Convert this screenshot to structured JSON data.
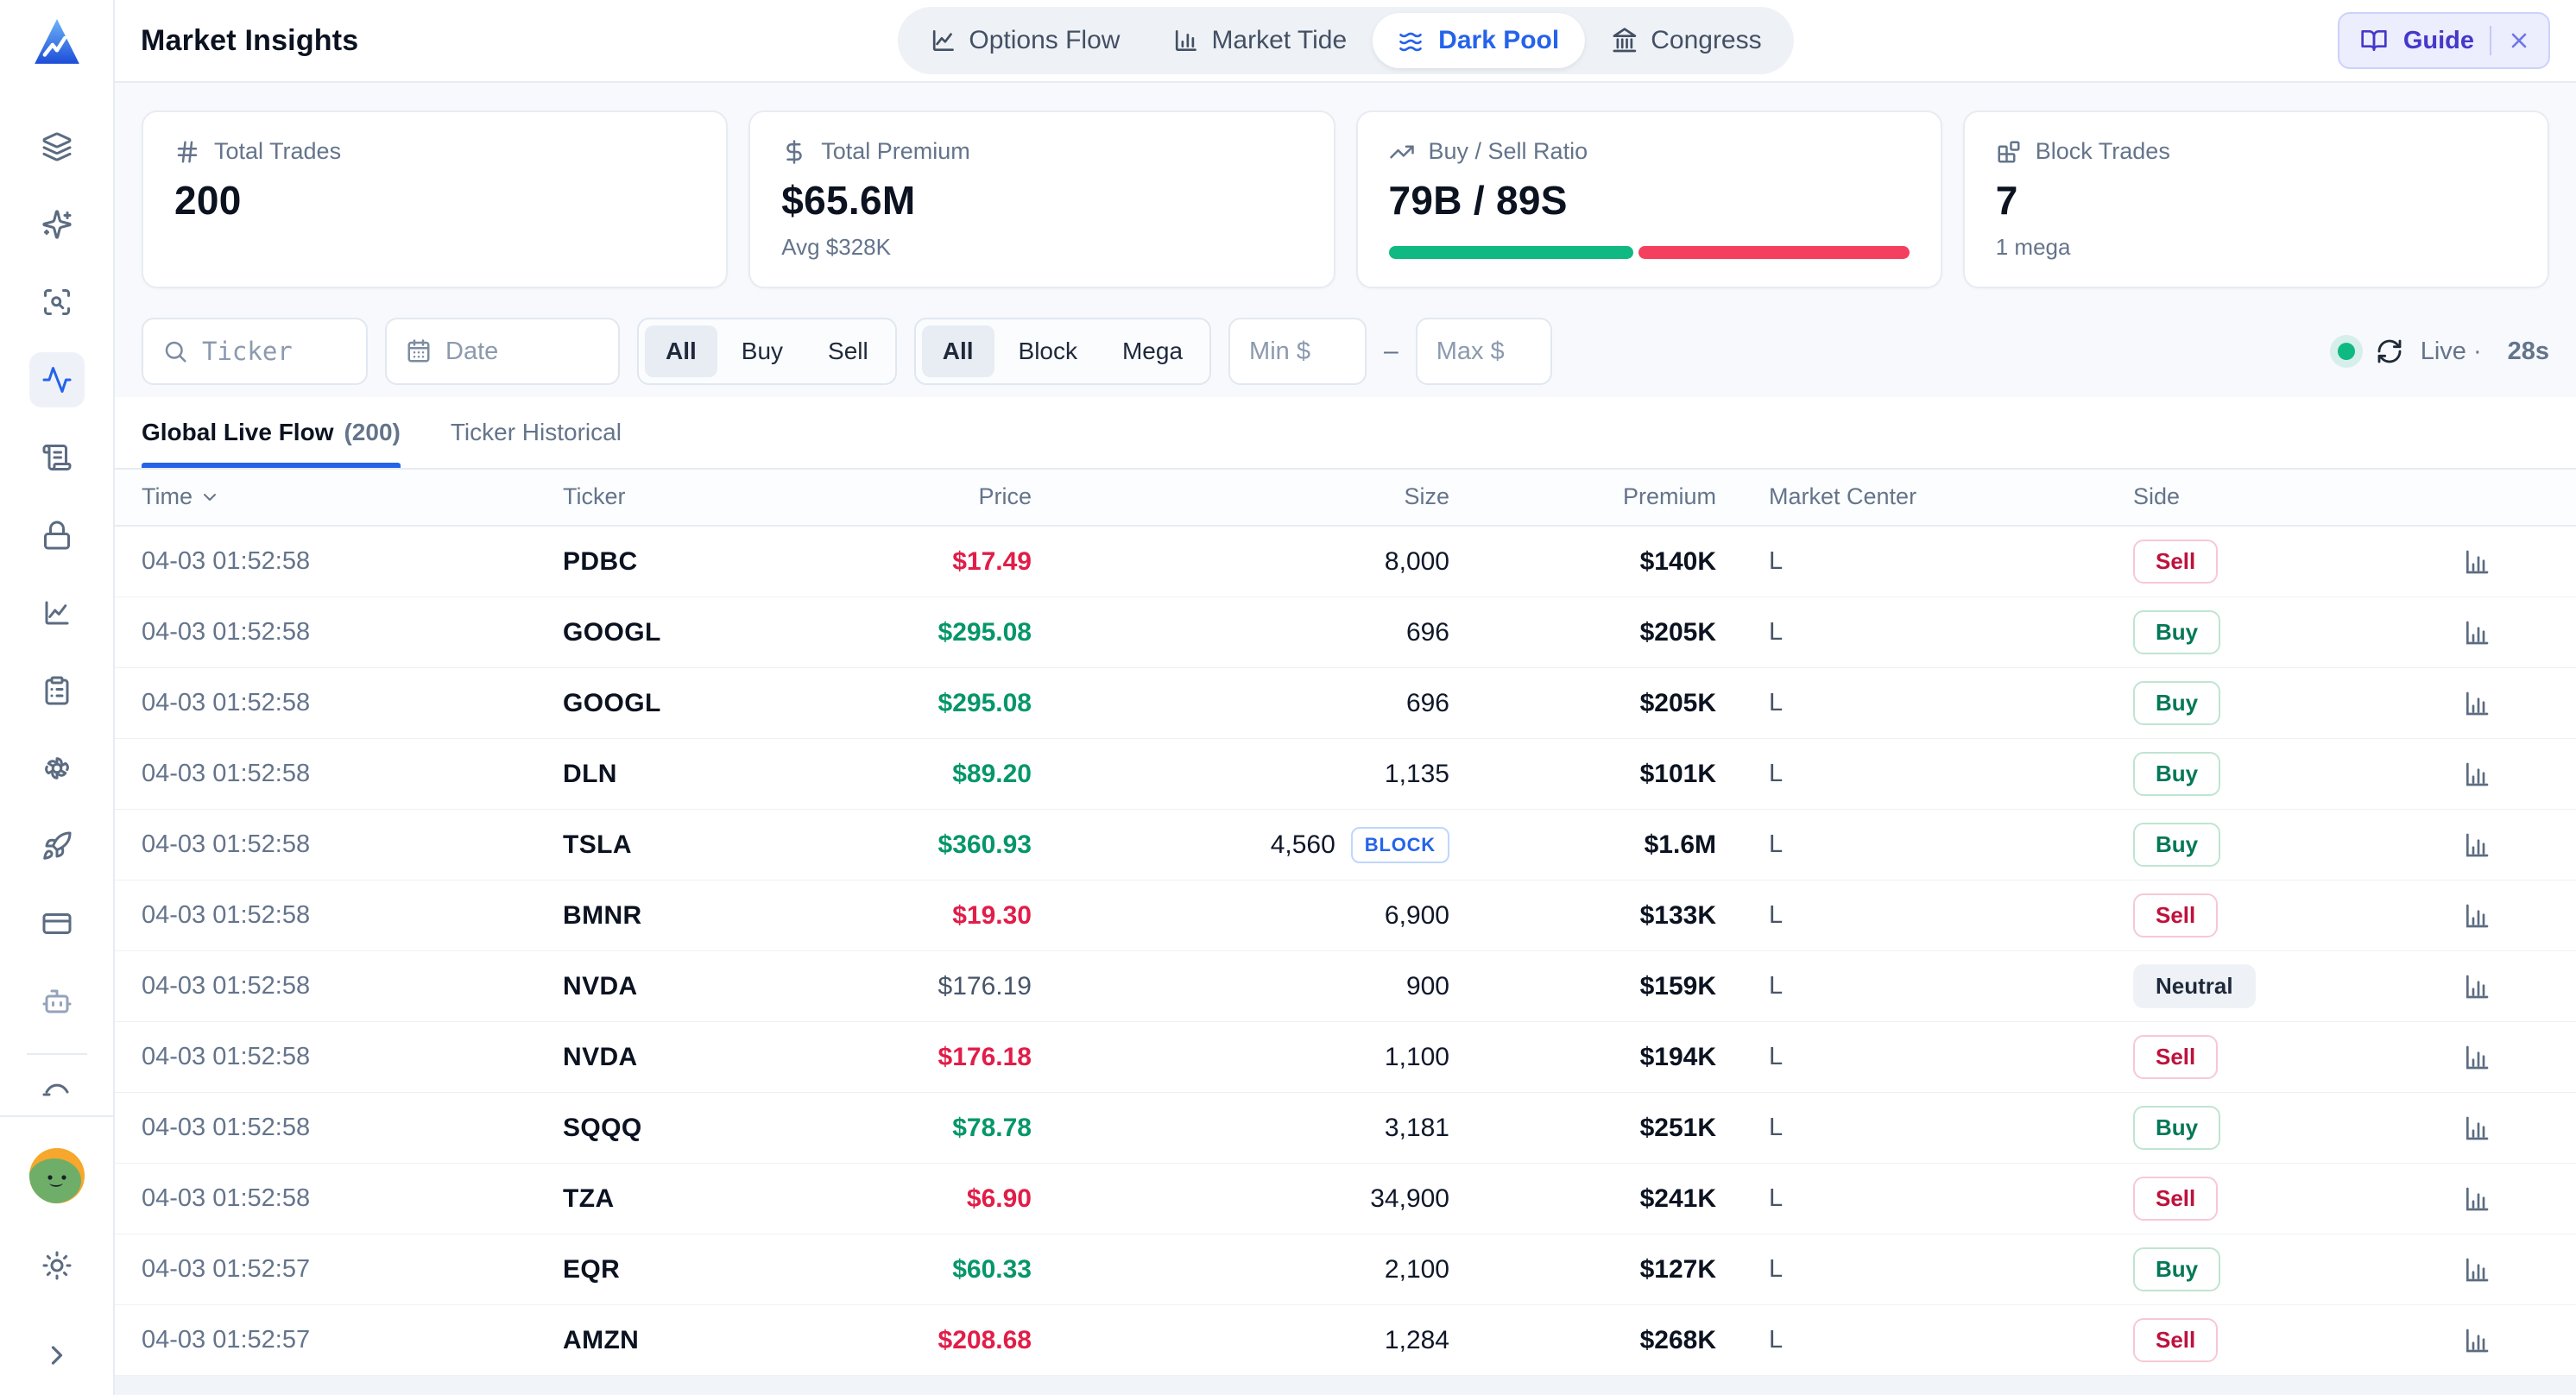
{
  "app": {
    "title": "Market Insights"
  },
  "header": {
    "nav_tabs": [
      {
        "label": "Options Flow",
        "icon": "chart-line",
        "active": false
      },
      {
        "label": "Market Tide",
        "icon": "bar-chart",
        "active": false
      },
      {
        "label": "Dark Pool",
        "icon": "waves",
        "active": true
      },
      {
        "label": "Congress",
        "icon": "landmark",
        "active": false
      }
    ],
    "guide_label": "Guide"
  },
  "sidebar": {
    "items": [
      "layers",
      "sparkles",
      "scan-search",
      "activity",
      "scroll-text",
      "lock",
      "chart-line",
      "clipboard-list",
      "openai",
      "rocket",
      "credit-card",
      "bot"
    ],
    "active_item": "activity",
    "peek_item": "graduation-cap"
  },
  "stats": [
    {
      "icon": "hash",
      "label": "Total Trades",
      "value": "200"
    },
    {
      "icon": "dollar",
      "label": "Total Premium",
      "value": "$65.6M",
      "sub": "Avg $328K"
    },
    {
      "icon": "trending-up",
      "label": "Buy / Sell Ratio",
      "value": "79B / 89S",
      "buy_pct": 47
    },
    {
      "icon": "blocks",
      "label": "Block Trades",
      "value": "7",
      "sub": "1 mega"
    }
  ],
  "filters": {
    "ticker_placeholder": "Ticker",
    "date_placeholder": "Date",
    "side_options": [
      "All",
      "Buy",
      "Sell"
    ],
    "side_selected": "All",
    "size_options": [
      "All",
      "Block",
      "Mega"
    ],
    "size_selected": "All",
    "min_placeholder": "Min $",
    "max_placeholder": "Max $",
    "range_separator": "–",
    "live_label": "Live ·",
    "refresh_in": "28s"
  },
  "view_tabs": [
    {
      "label": "Global Live Flow",
      "count": "(200)",
      "active": true
    },
    {
      "label": "Ticker Historical",
      "count": "",
      "active": false
    }
  ],
  "table": {
    "columns": [
      "Time",
      "Ticker",
      "Price",
      "Size",
      "Premium",
      "Market Center",
      "Side"
    ],
    "block_label": "BLOCK",
    "rows": [
      {
        "time": "04-03 01:52:58",
        "ticker": "PDBC",
        "price": "$17.49",
        "dir": "down",
        "size": "8,000",
        "block": false,
        "premium": "$140K",
        "mc": "L",
        "side": "Sell"
      },
      {
        "time": "04-03 01:52:58",
        "ticker": "GOOGL",
        "price": "$295.08",
        "dir": "up",
        "size": "696",
        "block": false,
        "premium": "$205K",
        "mc": "L",
        "side": "Buy"
      },
      {
        "time": "04-03 01:52:58",
        "ticker": "GOOGL",
        "price": "$295.08",
        "dir": "up",
        "size": "696",
        "block": false,
        "premium": "$205K",
        "mc": "L",
        "side": "Buy"
      },
      {
        "time": "04-03 01:52:58",
        "ticker": "DLN",
        "price": "$89.20",
        "dir": "up",
        "size": "1,135",
        "block": false,
        "premium": "$101K",
        "mc": "L",
        "side": "Buy"
      },
      {
        "time": "04-03 01:52:58",
        "ticker": "TSLA",
        "price": "$360.93",
        "dir": "up",
        "size": "4,560",
        "block": true,
        "premium": "$1.6M",
        "mc": "L",
        "side": "Buy"
      },
      {
        "time": "04-03 01:52:58",
        "ticker": "BMNR",
        "price": "$19.30",
        "dir": "down",
        "size": "6,900",
        "block": false,
        "premium": "$133K",
        "mc": "L",
        "side": "Sell"
      },
      {
        "time": "04-03 01:52:58",
        "ticker": "NVDA",
        "price": "$176.19",
        "dir": "flat",
        "size": "900",
        "block": false,
        "premium": "$159K",
        "mc": "L",
        "side": "Neutral"
      },
      {
        "time": "04-03 01:52:58",
        "ticker": "NVDA",
        "price": "$176.18",
        "dir": "down",
        "size": "1,100",
        "block": false,
        "premium": "$194K",
        "mc": "L",
        "side": "Sell"
      },
      {
        "time": "04-03 01:52:58",
        "ticker": "SQQQ",
        "price": "$78.78",
        "dir": "up",
        "size": "3,181",
        "block": false,
        "premium": "$251K",
        "mc": "L",
        "side": "Buy"
      },
      {
        "time": "04-03 01:52:58",
        "ticker": "TZA",
        "price": "$6.90",
        "dir": "down",
        "size": "34,900",
        "block": false,
        "premium": "$241K",
        "mc": "L",
        "side": "Sell"
      },
      {
        "time": "04-03 01:52:57",
        "ticker": "EQR",
        "price": "$60.33",
        "dir": "up",
        "size": "2,100",
        "block": false,
        "premium": "$127K",
        "mc": "L",
        "side": "Buy"
      },
      {
        "time": "04-03 01:52:57",
        "ticker": "AMZN",
        "price": "$208.68",
        "dir": "down",
        "size": "1,284",
        "block": false,
        "premium": "$268K",
        "mc": "L",
        "side": "Sell"
      }
    ]
  },
  "colors": {
    "accent": "#2563eb",
    "buy": "#059669",
    "sell": "#e11d48",
    "bar_buy": "#10b981",
    "bar_sell": "#f43f5e"
  }
}
